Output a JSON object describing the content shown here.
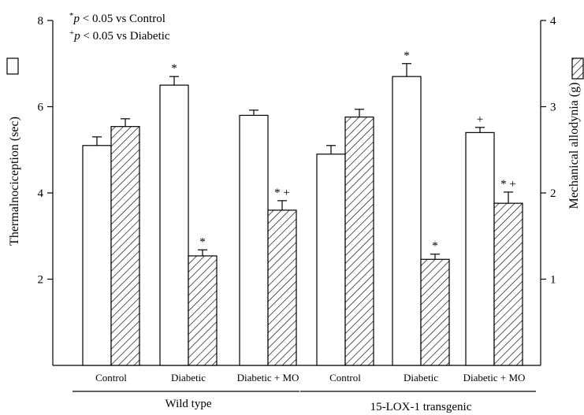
{
  "chart_data": {
    "type": "bar",
    "categories": [
      "Control",
      "Diabetic",
      "Diabetic + MO",
      "Control",
      "Diabetic",
      "Diabetic + MO"
    ],
    "groups": [
      {
        "label": "Wild type",
        "category_indices": [
          0,
          1,
          2
        ]
      },
      {
        "label": "15-LOX-1 transgenic",
        "category_indices": [
          3,
          4,
          5
        ]
      }
    ],
    "series": [
      {
        "axis": "left",
        "pattern": "open",
        "values": [
          5.1,
          6.5,
          5.8,
          4.9,
          6.7,
          5.4
        ],
        "errors": [
          0.2,
          0.2,
          0.12,
          0.2,
          0.3,
          0.12
        ],
        "annotations": [
          "",
          "*",
          "",
          "",
          "*",
          "+"
        ]
      },
      {
        "axis": "right",
        "pattern": "hatched",
        "values": [
          2.77,
          1.27,
          1.8,
          2.88,
          1.23,
          1.88
        ],
        "errors": [
          0.09,
          0.07,
          0.11,
          0.09,
          0.06,
          0.13
        ],
        "annotations": [
          "",
          "*",
          "*+",
          "",
          "*",
          "*+"
        ]
      }
    ],
    "ylabel_left": "Thermalnociception (sec)",
    "ylabel_right": "Mechanical allodynia (g)",
    "ylim_left": [
      0,
      8
    ],
    "ylim_right": [
      0,
      4
    ],
    "yticks_left": [
      2,
      4,
      6,
      8
    ],
    "yticks_right": [
      1,
      2,
      3,
      4
    ],
    "legend": {
      "line1_symbol": "*",
      "line1_italic": "p",
      "line1_rest": " < 0.05 vs Control",
      "line2_symbol": "+",
      "line2_italic": "p",
      "line2_rest": " < 0.05 vs Diabetic"
    },
    "grid": false
  }
}
